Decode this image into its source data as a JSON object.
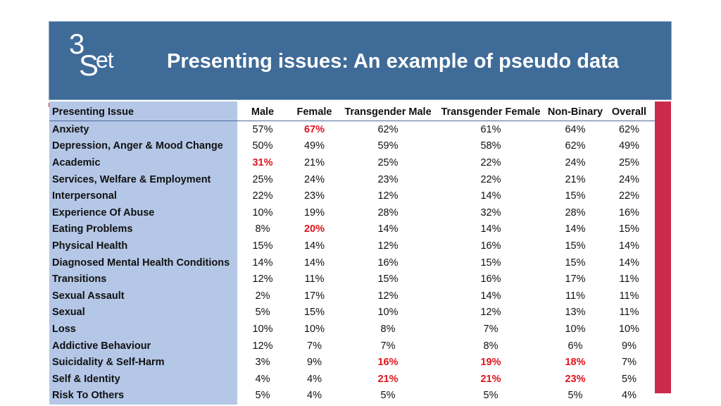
{
  "slide": {
    "title": "Presenting issues: An example of pseudo data",
    "logo": {
      "digit": "3",
      "s": "S",
      "et": "et"
    },
    "accent_color": "#cc2a4a",
    "header_color": "#3f6b98",
    "label_column_color": "#b4c7e7",
    "highlight_color": "#e0141e"
  },
  "table": {
    "headers": [
      "Presenting Issue",
      "Male",
      "Female",
      "Transgender Male",
      "Transgender Female",
      "Non-Binary",
      "Overall"
    ],
    "rows": [
      {
        "issue": "Anxiety",
        "values": [
          "57%",
          "67%",
          "62%",
          "61%",
          "64%",
          "62%"
        ],
        "highlight": [
          1
        ]
      },
      {
        "issue": "Depression, Anger & Mood Change",
        "values": [
          "50%",
          "49%",
          "59%",
          "58%",
          "62%",
          "49%"
        ],
        "highlight": []
      },
      {
        "issue": "Academic",
        "values": [
          "31%",
          "21%",
          "25%",
          "22%",
          "24%",
          "25%"
        ],
        "highlight": [
          0
        ]
      },
      {
        "issue": "Services, Welfare & Employment",
        "values": [
          "25%",
          "24%",
          "23%",
          "22%",
          "21%",
          "24%"
        ],
        "highlight": []
      },
      {
        "issue": "Interpersonal",
        "values": [
          "22%",
          "23%",
          "12%",
          "14%",
          "15%",
          "22%"
        ],
        "highlight": []
      },
      {
        "issue": "Experience Of Abuse",
        "values": [
          "10%",
          "19%",
          "28%",
          "32%",
          "28%",
          "16%"
        ],
        "highlight": []
      },
      {
        "issue": "Eating Problems",
        "values": [
          "8%",
          "20%",
          "14%",
          "14%",
          "14%",
          "15%"
        ],
        "highlight": [
          1
        ]
      },
      {
        "issue": "Physical Health",
        "values": [
          "15%",
          "14%",
          "12%",
          "16%",
          "15%",
          "14%"
        ],
        "highlight": []
      },
      {
        "issue": "Diagnosed Mental Health Conditions",
        "values": [
          "14%",
          "14%",
          "16%",
          "15%",
          "15%",
          "14%"
        ],
        "highlight": []
      },
      {
        "issue": "Transitions",
        "values": [
          "12%",
          "11%",
          "15%",
          "16%",
          "17%",
          "11%"
        ],
        "highlight": []
      },
      {
        "issue": "Sexual Assault",
        "values": [
          "2%",
          "17%",
          "12%",
          "14%",
          "11%",
          "11%"
        ],
        "highlight": []
      },
      {
        "issue": "Sexual",
        "values": [
          "5%",
          "15%",
          "10%",
          "12%",
          "13%",
          "11%"
        ],
        "highlight": []
      },
      {
        "issue": "Loss",
        "values": [
          "10%",
          "10%",
          "8%",
          "7%",
          "10%",
          "10%"
        ],
        "highlight": []
      },
      {
        "issue": "Addictive Behaviour",
        "values": [
          "12%",
          "7%",
          "7%",
          "8%",
          "6%",
          "9%"
        ],
        "highlight": []
      },
      {
        "issue": "Suicidality & Self-Harm",
        "values": [
          "3%",
          "9%",
          "16%",
          "19%",
          "18%",
          "7%"
        ],
        "highlight": [
          2,
          3,
          4
        ]
      },
      {
        "issue": "Self & Identity",
        "values": [
          "4%",
          "4%",
          "21%",
          "21%",
          "23%",
          "5%"
        ],
        "highlight": [
          2,
          3,
          4
        ]
      },
      {
        "issue": "Risk To Others",
        "values": [
          "5%",
          "4%",
          "5%",
          "5%",
          "5%",
          "4%"
        ],
        "highlight": []
      }
    ]
  }
}
